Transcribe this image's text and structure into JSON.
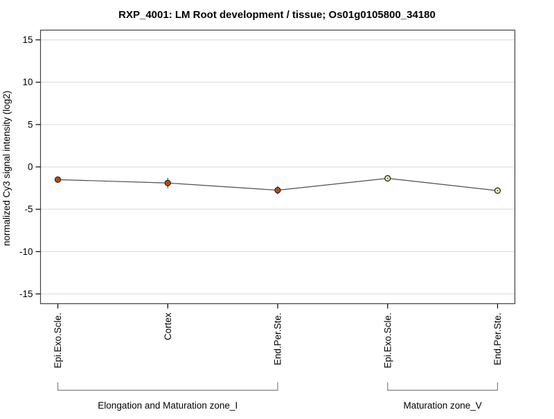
{
  "chart_data": {
    "type": "line",
    "title": "RXP_4001: LM Root development / tissue; Os01g0105800_34180",
    "ylabel": "normalized Cy3 signal intensity (log2)",
    "ylim": [
      -16.15,
      16.15
    ],
    "yticks": [
      -15,
      -10,
      -5,
      0,
      5,
      10,
      15
    ],
    "grid": true,
    "legend": "none",
    "categories": [
      "Epi.Exo.Scle.",
      "Cortex",
      "End.Per.Ste.",
      "Epi.Exo.Scle.",
      "End.Per.Ste."
    ],
    "series": [
      {
        "name": "normalized Cy3 signal intensity",
        "values": [
          -1.5,
          -1.9,
          -2.75,
          -1.35,
          -2.8
        ],
        "errors": [
          0.3,
          0.6,
          0.5,
          0.1,
          0.25
        ]
      }
    ],
    "groups": [
      {
        "label": "Elongation and Maturation zone_I",
        "start_index": 0,
        "end_index": 2
      },
      {
        "label": "Maturation zone_V",
        "start_index": 3,
        "end_index": 4
      }
    ],
    "colors": {
      "point_fill_by_group": [
        "#cc4e0c",
        "#efeeb0"
      ],
      "point_border": "#1a1a1a",
      "point_center_dot": "#4d3319",
      "line": "#4d4d4d",
      "error_bar": "#4d4d4d",
      "grid": "#d9d9d9",
      "plot_border": "#404040",
      "bracket": "#808080",
      "background": "#ffffff"
    }
  }
}
